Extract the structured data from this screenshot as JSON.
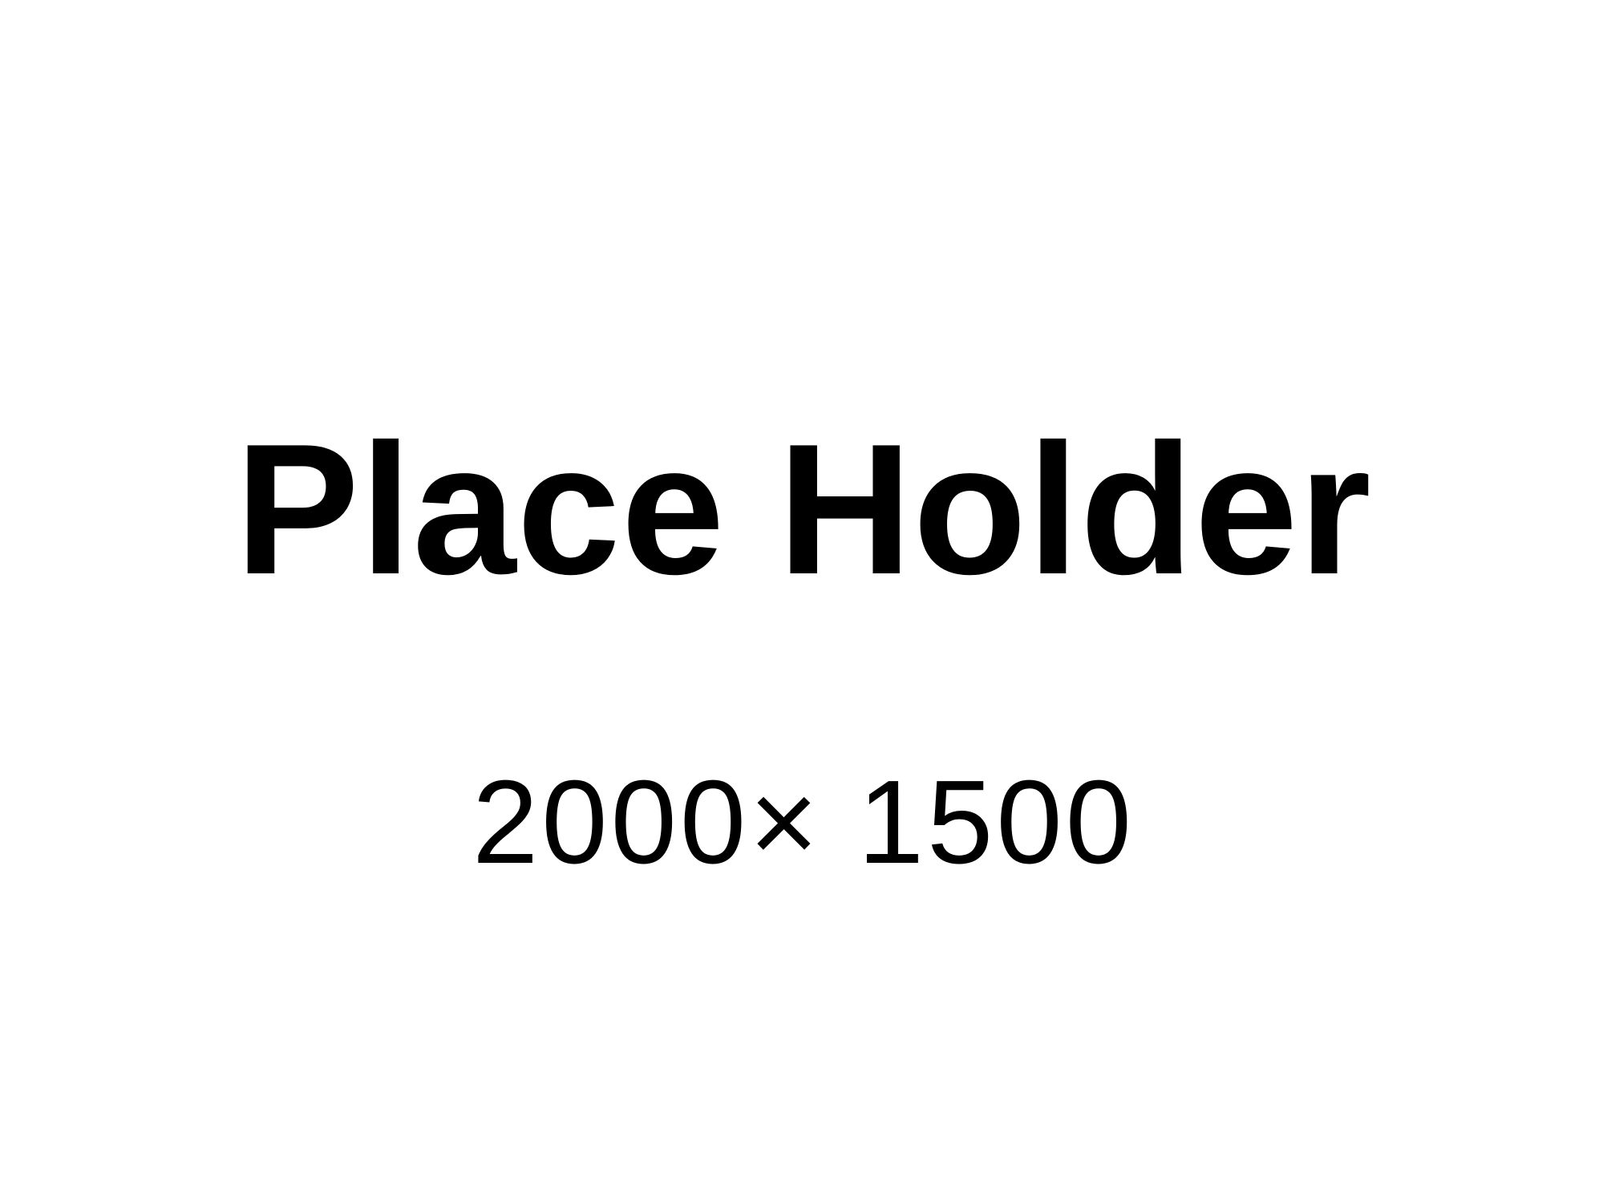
{
  "placeholder": {
    "title": "Place Holder",
    "dimensions": "2000× 1500"
  },
  "colors": {
    "background": "#ffffff",
    "text": "#000000"
  }
}
